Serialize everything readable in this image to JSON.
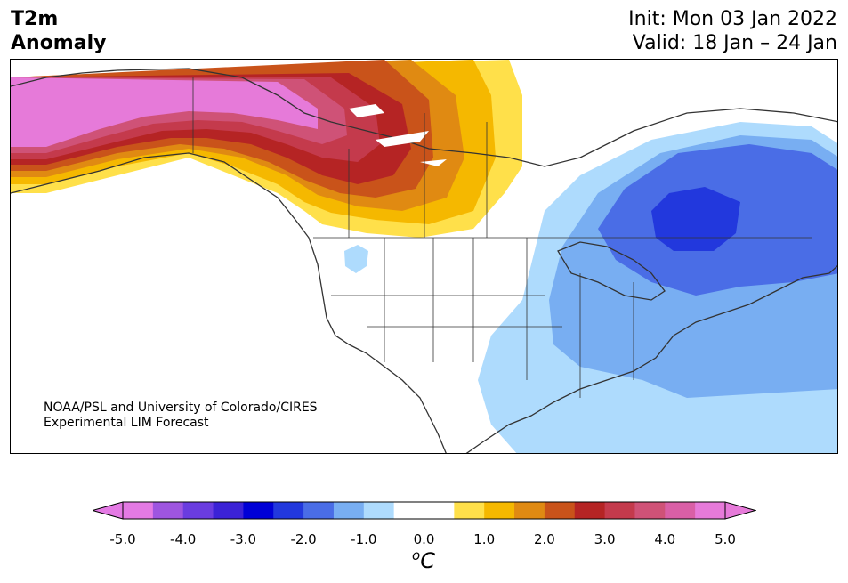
{
  "title": {
    "line1": "T2m",
    "line2": "Anomaly"
  },
  "info": {
    "init": "Init: Mon 03 Jan 2022",
    "valid": "Valid: 18 Jan – 24 Jan"
  },
  "credit": {
    "line1": "NOAA/PSL and University of Colorado/CIRES",
    "line2": "Experimental LIM Forecast"
  },
  "colorbar": {
    "unit_sup": "o",
    "unit": "C",
    "tick_labels": [
      "-5.0",
      "-4.0",
      "-3.0",
      "-2.0",
      "-1.0",
      "0.0",
      "1.0",
      "2.0",
      "3.0",
      "4.0",
      "5.0"
    ],
    "colors": [
      "#e47ae4",
      "#9e55e0",
      "#6a3ce0",
      "#3b22d6",
      "#0000d6",
      "#2238dd",
      "#4a6de6",
      "#78aef2",
      "#aedbfd",
      "#ffffff",
      "#ffffff",
      "#ffe04a",
      "#f5b800",
      "#e08a12",
      "#c9531a",
      "#b52424",
      "#c43a4c",
      "#cf5277",
      "#d95fa6",
      "#e67ad9"
    ],
    "under_color": "#e47ae4",
    "over_color": "#e67ad9"
  },
  "palette": {
    "cold1": "#aedbfd",
    "cold2": "#78aef2",
    "cold3": "#4a6de6",
    "cold4": "#2238dd",
    "warm1": "#ffe04a",
    "warm2": "#f5b800",
    "warm3": "#e08a12",
    "warm4": "#c9531a",
    "warm5": "#b52424",
    "warm6": "#c43a4c",
    "warm7": "#cf5277",
    "warm8": "#d95fa6",
    "warm9": "#e67ad9"
  }
}
